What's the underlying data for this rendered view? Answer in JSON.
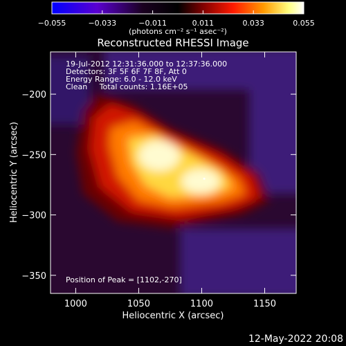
{
  "chart_data": {
    "type": "heatmap",
    "title": "Reconstructed RHESSI Image",
    "xlabel": "Heliocentric X (arcsec)",
    "ylabel": "Heliocentric Y (arcsec)",
    "xlim": [
      980,
      1175
    ],
    "ylim": [
      -365,
      -165
    ],
    "x_ticks": [
      1000,
      1050,
      1100,
      1150
    ],
    "y_ticks": [
      -200,
      -250,
      -300,
      -350
    ],
    "colorbar": {
      "range": [
        -0.055,
        0.055
      ],
      "ticks": [
        -0.055,
        -0.033,
        -0.011,
        0.011,
        0.033,
        0.055
      ],
      "tick_labels": [
        "−0.055",
        "−0.033",
        "−0.011",
        "0.011",
        "0.033",
        "0.055"
      ],
      "unit_label": "(photons cm⁻² s⁻¹ asec⁻²)",
      "colormap": [
        "#0000ff",
        "#6a00ff",
        "#2a0033",
        "#000000",
        "#7a0000",
        "#ff2000",
        "#ff9a00",
        "#ffff66",
        "#ffffff"
      ]
    },
    "annotations": [
      "19-Jul-2012 12:31:36.000 to 12:37:36.000",
      "Detectors: 3F 5F 6F 7F 8F, Att 0",
      "Energy Range: 6.0 - 12.0 keV",
      "Clean     Total counts: 1.16E+05"
    ],
    "peak_label": "Position of Peak = [1102,-270]",
    "peak_position": [
      1102,
      -270
    ],
    "background_level": -0.012
  },
  "timestamp": "12-May-2022 20:08"
}
